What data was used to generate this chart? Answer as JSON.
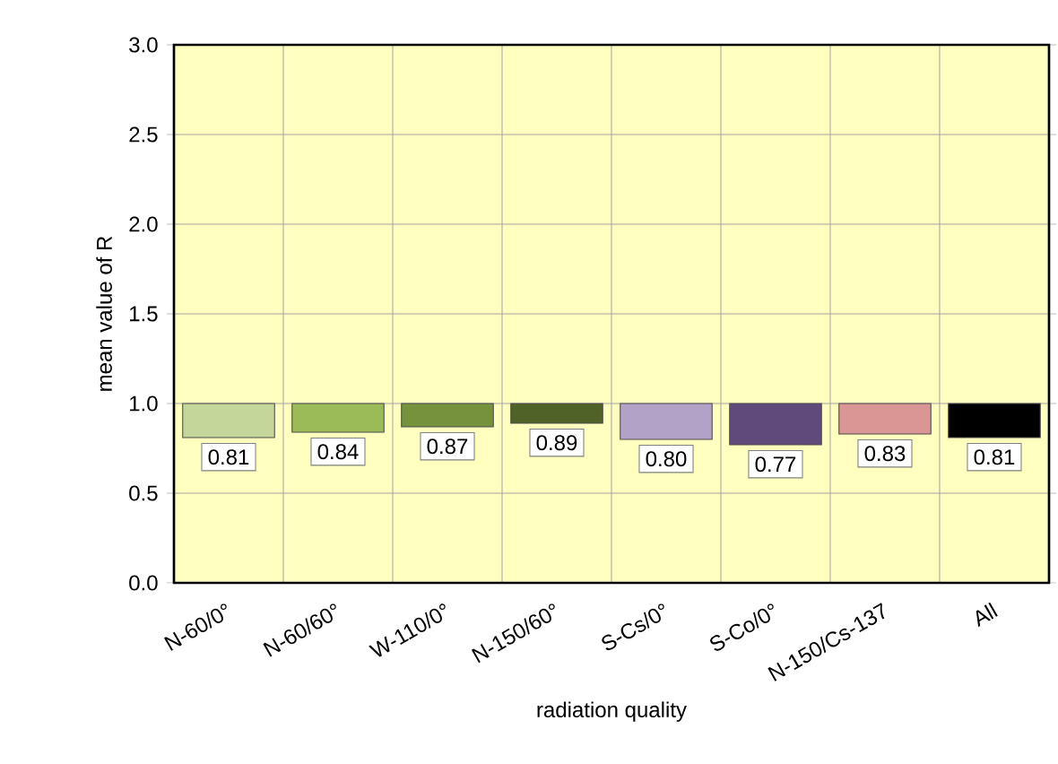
{
  "chart_data": {
    "type": "bar",
    "xlabel": "radiation quality",
    "ylabel": "mean value of  R",
    "categories": [
      "N-60/0°",
      "N-60/60°",
      "W-110/0°",
      "N-150/60°",
      "S-Cs/0°",
      "S-Co/0°",
      "N-150/Cs-137",
      "All"
    ],
    "base": [
      1.0,
      1.0,
      1.0,
      1.0,
      1.0,
      1.0,
      1.0,
      1.0
    ],
    "values": [
      -0.19,
      -0.16,
      -0.13,
      -0.11,
      -0.2,
      -0.23,
      -0.17,
      -0.19
    ],
    "value_labels": [
      "0.81",
      "0.84",
      "0.87",
      "0.89",
      "0.80",
      "0.77",
      "0.83",
      "0.81"
    ],
    "colors": [
      "#c4d79b",
      "#9bbb59",
      "#76923c",
      "#4f6228",
      "#b3a2c7",
      "#604a7b",
      "#d99694",
      "#000000"
    ],
    "ylim": [
      0,
      3
    ],
    "yticks": [
      {
        "value": 0,
        "label": "0.0"
      },
      {
        "value": 0.5,
        "label": "0.5"
      },
      {
        "value": 1,
        "label": "1.0"
      },
      {
        "value": 1.5,
        "label": "1.5"
      },
      {
        "value": 2,
        "label": "2.0"
      },
      {
        "value": 2.5,
        "label": "2.5"
      },
      {
        "value": 3,
        "label": "3.0"
      }
    ],
    "grid": true
  }
}
